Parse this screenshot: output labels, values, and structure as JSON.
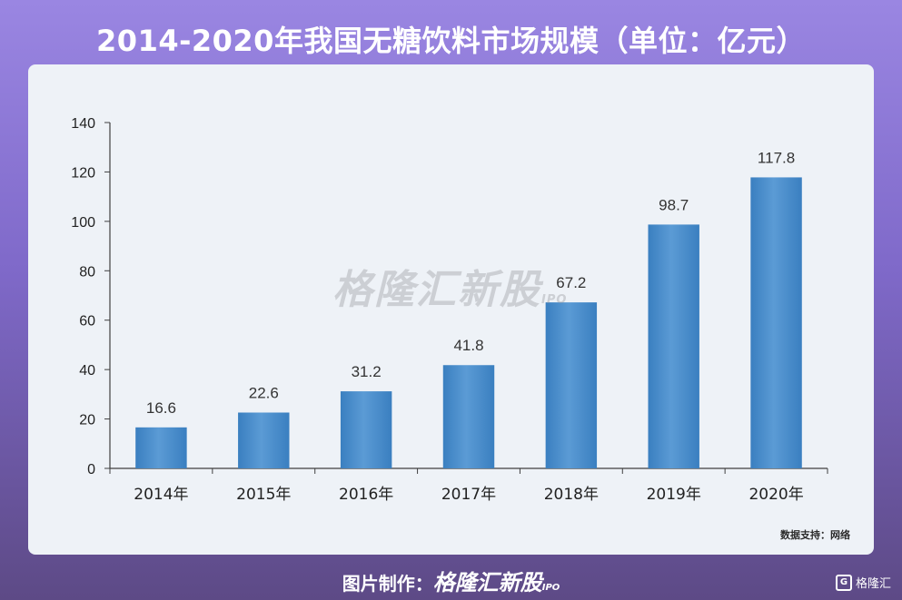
{
  "title": "2014-2020年我国无糖饮料市场规模（单位：亿元）",
  "source": "数据支持：网络",
  "watermark": {
    "brand": "格隆汇新股",
    "ipo": "IPO"
  },
  "footer": {
    "prefix": "图片制作：",
    "brand": "格隆汇新股",
    "ipo": "IPO"
  },
  "corner_logo": {
    "mark": "G",
    "text": "格隆汇"
  },
  "colors": {
    "bar": "#5b9bd5",
    "bar_dark": "#3a7fc0",
    "axis": "#404040"
  },
  "chart_data": {
    "type": "bar",
    "categories": [
      "2014年",
      "2015年",
      "2016年",
      "2017年",
      "2018年",
      "2019年",
      "2020年"
    ],
    "values": [
      16.6,
      22.6,
      31.2,
      41.8,
      67.2,
      98.7,
      117.8
    ],
    "value_labels": [
      "16.6",
      "22.6",
      "31.2",
      "41.8",
      "67.2",
      "98.7",
      "117.8"
    ],
    "ylim": [
      0,
      140
    ],
    "yticks": [
      0,
      20,
      40,
      60,
      80,
      100,
      120,
      140
    ],
    "grid": false,
    "legend": "none"
  }
}
